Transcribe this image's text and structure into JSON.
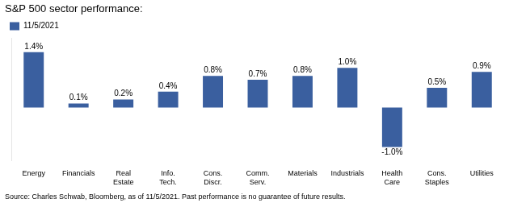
{
  "chart_data": {
    "type": "bar",
    "title": "S&P 500 sector performance:",
    "categories": [
      "Energy",
      "Financials",
      "Real\nEstate",
      "Info.\nTech.",
      "Cons.\nDiscr.",
      "Comm.\nServ.",
      "Materials",
      "Industrials",
      "Health\nCare",
      "Cons.\nStaples",
      "Utilities"
    ],
    "series": [
      {
        "name": "11/5/2021",
        "color": "#3A5F9F",
        "values": [
          1.4,
          0.1,
          0.2,
          0.4,
          0.8,
          0.7,
          0.8,
          1.0,
          -1.0,
          0.5,
          0.9
        ],
        "value_labels": [
          "1.4%",
          "0.1%",
          "0.2%",
          "0.4%",
          "0.8%",
          "0.7%",
          "0.8%",
          "1.0%",
          "-1.0%",
          "0.5%",
          "0.9%"
        ]
      }
    ],
    "ylim": [
      -1.35,
      1.75
    ],
    "grid": false,
    "legend": "top",
    "data_labels": true,
    "tick_labels": "x",
    "annotations": [
      "Source: Charles Schwab, Bloomberg, as of 11/5/2021. Past performance is no guarantee of future results."
    ]
  }
}
